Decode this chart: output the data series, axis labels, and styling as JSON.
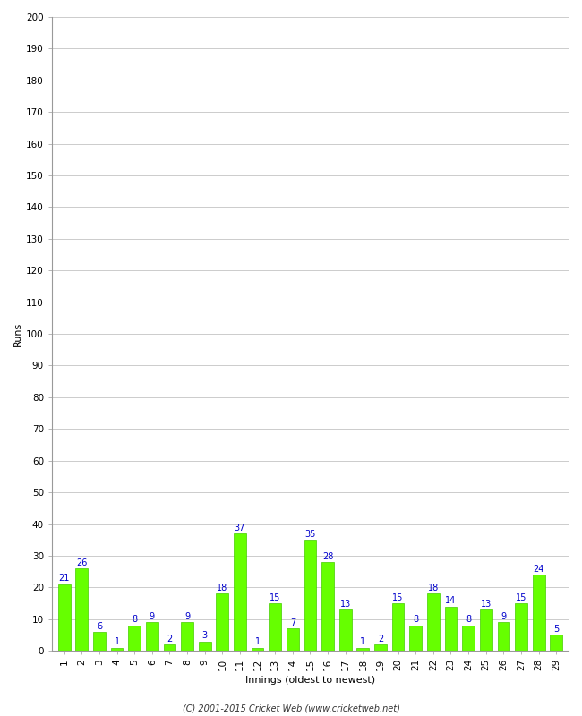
{
  "innings": [
    1,
    2,
    3,
    4,
    5,
    6,
    7,
    8,
    9,
    10,
    11,
    12,
    13,
    14,
    15,
    16,
    17,
    18,
    19,
    20,
    21,
    22,
    23,
    24,
    25,
    26,
    27,
    28,
    29
  ],
  "runs": [
    21,
    26,
    6,
    1,
    8,
    9,
    2,
    9,
    3,
    18,
    37,
    1,
    15,
    7,
    35,
    28,
    13,
    1,
    2,
    15,
    8,
    18,
    14,
    8,
    13,
    9,
    15,
    24,
    5
  ],
  "bar_color": "#66ff00",
  "bar_edge_color": "#44cc00",
  "label_color": "#0000cc",
  "ylabel": "Runs",
  "xlabel": "Innings (oldest to newest)",
  "ylabel_fontsize": 8,
  "xlabel_fontsize": 8,
  "tick_fontsize": 7.5,
  "label_fontsize": 7,
  "ylim": [
    0,
    200
  ],
  "background_color": "#ffffff",
  "grid_color": "#cccccc",
  "footer": "(C) 2001-2015 Cricket Web (www.cricketweb.net)"
}
